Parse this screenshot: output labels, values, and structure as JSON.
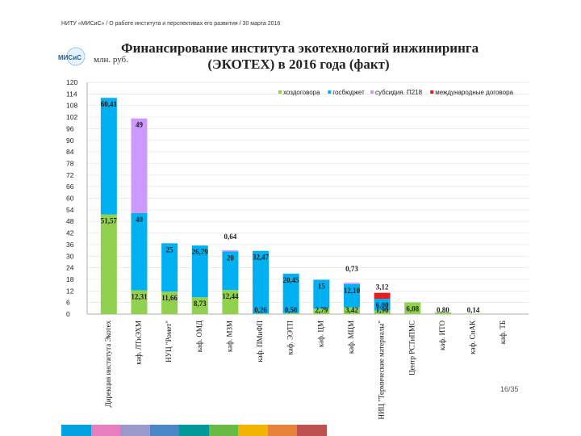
{
  "header": "НИТУ «МИСиС» / О работе института и перспективах его развития / 30 марта 2016",
  "logo_text": "МИСиС",
  "units": "млн. руб.",
  "title_line1": "Финансирование института экотехнологий инжиниринга",
  "title_line2": "(ЭКОТЕХ) в 2016 года (факт)",
  "page_number": "16/35",
  "strip_colors": [
    "#00a3e0",
    "#e87ec0",
    "#9999cc",
    "#4a86c8",
    "#009999",
    "#66bb44",
    "#f2b400",
    "#e8813a",
    "#c0504d"
  ],
  "chart_data": {
    "type": "bar",
    "stacked": true,
    "categories": [
      "Дирекция института Экотех",
      "каф. ЛТиЭХМ",
      "НУЦ \"Ромет\"",
      "каф. ОМД",
      "каф. МЗМ",
      "каф. ПМиФП",
      "каф. ЭЭТП",
      "каф. ЦМ",
      "каф. МЦМ",
      "НИЦ \"Термические материалы\"",
      "Центр РСТиПМС",
      "каф. ИТО",
      "каф. СиАК",
      "каф. ТБ"
    ],
    "series": [
      {
        "name": "хоздоговора",
        "color": "#92d050",
        "values": [
          51.57,
          12.31,
          11.66,
          8.73,
          12.44,
          0.26,
          0.5,
          2.79,
          3.42,
          1.9,
          6.08,
          0.8,
          0.14,
          0
        ]
      },
      {
        "name": "госбюджет",
        "color": "#00b0f0",
        "values": [
          60.41,
          40,
          25,
          26.79,
          20,
          32.47,
          20.45,
          15,
          12.1,
          6,
          0,
          0,
          0,
          0
        ]
      },
      {
        "name": "субсидия. П218",
        "color": "#cc99ff",
        "values": [
          0,
          49,
          0,
          0,
          0.64,
          0,
          0,
          0,
          0.73,
          0,
          0,
          0,
          0,
          0
        ]
      },
      {
        "name": "международные договора",
        "color": "#e02020",
        "values": [
          0,
          0,
          0,
          0,
          0,
          0,
          0,
          0,
          0,
          3.12,
          0,
          0,
          0,
          0
        ]
      }
    ],
    "labels": [
      [
        "51,57",
        "60,41",
        "",
        ""
      ],
      [
        "12,31",
        "40",
        "49",
        ""
      ],
      [
        "11,66",
        "25",
        "",
        ""
      ],
      [
        "8,73",
        "26,79",
        "",
        ""
      ],
      [
        "12,44",
        "20",
        "0,64",
        ""
      ],
      [
        "0,26",
        "32,47",
        "",
        ""
      ],
      [
        "0,50",
        "20,45",
        "",
        ""
      ],
      [
        "2,79",
        "15",
        "",
        ""
      ],
      [
        "3,42",
        "12,10",
        "0,73",
        ""
      ],
      [
        "1,90",
        "6,00",
        "",
        "3,12"
      ],
      [
        "6,08",
        "",
        "",
        ""
      ],
      [
        "0,80",
        "",
        "",
        ""
      ],
      [
        "0,14",
        "",
        "",
        ""
      ],
      [
        "",
        "",
        "",
        ""
      ]
    ],
    "y_ticks": [
      "0",
      "6",
      "12",
      "18",
      "24",
      "30",
      "36",
      "42",
      "48",
      "54",
      "60",
      "66",
      "72",
      "78",
      "84",
      "90",
      "96",
      "102",
      "108",
      "114",
      "120"
    ],
    "ylim": [
      0,
      120
    ],
    "grid": true,
    "legend_position": "top"
  }
}
